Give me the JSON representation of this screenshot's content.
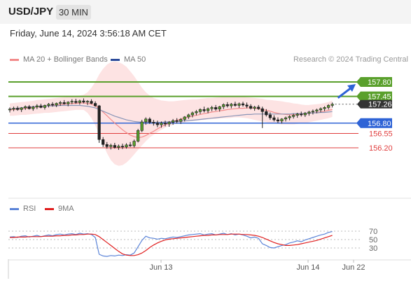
{
  "header": {
    "symbol": "USD/JPY",
    "timeframe": "30 MIN",
    "datetime": "Friday, June 14, 2024 3:56:18 AM CET"
  },
  "legend": {
    "ma20_label": "MA 20 + Bollinger Bands",
    "ma20_color": "#f28b8b",
    "ma50_label": "MA 50",
    "ma50_color": "#2b4a9a",
    "credit": "Research © 2024 Trading Central"
  },
  "rsi_legend": {
    "rsi_label": "RSI",
    "rsi_color": "#5b84d8",
    "ma_label": "9MA",
    "ma_color": "#e02020"
  },
  "chart_data": [
    {
      "type": "candlestick",
      "instrument": "USD/JPY",
      "timeframe": "30 MIN",
      "x_labels": [
        "Jun 13",
        "Jun 14",
        "Jun 22"
      ],
      "current_price": "157.26",
      "levels": [
        {
          "value": 157.8,
          "label": "157.80",
          "kind": "resistance",
          "color": "#5aa02c"
        },
        {
          "value": 157.45,
          "label": "157.45",
          "kind": "resistance",
          "color": "#5aa02c"
        },
        {
          "value": 156.8,
          "label": "156.80",
          "kind": "pivot",
          "color": "#2e63d6"
        },
        {
          "value": 156.55,
          "label": "156.55",
          "kind": "support",
          "color": "#e03c3c"
        },
        {
          "value": 156.2,
          "label": "156.20",
          "kind": "support",
          "color": "#e03c3c"
        }
      ],
      "candles": [
        [
          157.12,
          157.18,
          157.06,
          157.14
        ],
        [
          157.14,
          157.2,
          157.09,
          157.16
        ],
        [
          157.16,
          157.21,
          157.1,
          157.13
        ],
        [
          157.13,
          157.19,
          157.07,
          157.17
        ],
        [
          157.17,
          157.23,
          157.12,
          157.2
        ],
        [
          157.2,
          157.24,
          157.13,
          157.15
        ],
        [
          157.15,
          157.22,
          157.1,
          157.19
        ],
        [
          157.19,
          157.26,
          157.14,
          157.22
        ],
        [
          157.22,
          157.27,
          157.16,
          157.18
        ],
        [
          157.18,
          157.25,
          157.13,
          157.23
        ],
        [
          157.23,
          157.29,
          157.18,
          157.26
        ],
        [
          157.26,
          157.31,
          157.2,
          157.24
        ],
        [
          157.24,
          157.3,
          157.19,
          157.28
        ],
        [
          157.28,
          157.34,
          157.22,
          157.3
        ],
        [
          157.3,
          157.36,
          157.25,
          157.27
        ],
        [
          157.27,
          157.33,
          157.21,
          157.31
        ],
        [
          157.31,
          157.38,
          157.26,
          157.33
        ],
        [
          157.33,
          157.39,
          157.27,
          157.3
        ],
        [
          157.3,
          157.37,
          157.25,
          157.34
        ],
        [
          157.34,
          157.4,
          157.28,
          157.31
        ],
        [
          157.31,
          157.36,
          157.24,
          157.33
        ],
        [
          157.33,
          157.38,
          157.26,
          157.28
        ],
        [
          157.28,
          157.33,
          157.2,
          157.22
        ],
        [
          157.22,
          157.24,
          156.32,
          156.4
        ],
        [
          156.4,
          156.46,
          156.22,
          156.28
        ],
        [
          156.28,
          156.34,
          156.18,
          156.23
        ],
        [
          156.23,
          156.3,
          156.16,
          156.26
        ],
        [
          156.26,
          156.32,
          156.18,
          156.21
        ],
        [
          156.21,
          156.28,
          156.15,
          156.24
        ],
        [
          156.24,
          156.3,
          156.17,
          156.22
        ],
        [
          156.22,
          156.31,
          156.18,
          156.27
        ],
        [
          156.27,
          156.34,
          156.22,
          156.25
        ],
        [
          156.25,
          156.4,
          156.21,
          156.36
        ],
        [
          156.36,
          156.66,
          156.33,
          156.62
        ],
        [
          156.62,
          156.88,
          156.58,
          156.83
        ],
        [
          156.83,
          156.94,
          156.76,
          156.9
        ],
        [
          156.9,
          156.94,
          156.78,
          156.82
        ],
        [
          156.82,
          156.88,
          156.74,
          156.8
        ],
        [
          156.8,
          156.86,
          156.7,
          156.76
        ],
        [
          156.76,
          156.84,
          156.69,
          156.8
        ],
        [
          156.8,
          156.86,
          156.72,
          156.78
        ],
        [
          156.78,
          156.85,
          156.71,
          156.82
        ],
        [
          156.82,
          156.9,
          156.76,
          156.86
        ],
        [
          156.86,
          156.92,
          156.79,
          156.84
        ],
        [
          156.84,
          156.92,
          156.78,
          156.89
        ],
        [
          156.89,
          156.97,
          156.84,
          156.95
        ],
        [
          156.95,
          157.03,
          156.9,
          157.0
        ],
        [
          157.0,
          157.08,
          156.94,
          157.05
        ],
        [
          157.05,
          157.12,
          156.99,
          157.08
        ],
        [
          157.08,
          157.16,
          157.02,
          157.13
        ],
        [
          157.13,
          157.2,
          157.06,
          157.1
        ],
        [
          157.1,
          157.18,
          157.04,
          157.15
        ],
        [
          157.15,
          157.22,
          157.09,
          157.18
        ],
        [
          157.18,
          157.24,
          157.1,
          157.14
        ],
        [
          157.14,
          157.22,
          157.08,
          157.2
        ],
        [
          157.2,
          157.28,
          157.14,
          157.25
        ],
        [
          157.25,
          157.31,
          157.18,
          157.22
        ],
        [
          157.22,
          157.29,
          157.16,
          157.26
        ],
        [
          157.26,
          157.32,
          157.2,
          157.23
        ],
        [
          157.23,
          157.3,
          157.17,
          157.27
        ],
        [
          157.27,
          157.32,
          157.2,
          157.24
        ],
        [
          157.24,
          157.3,
          157.16,
          157.21
        ],
        [
          157.21,
          157.26,
          157.13,
          157.16
        ],
        [
          157.16,
          157.22,
          157.1,
          157.19
        ],
        [
          157.19,
          157.24,
          157.12,
          157.15
        ],
        [
          157.15,
          157.2,
          156.68,
          157.08
        ],
        [
          157.08,
          157.14,
          156.96,
          157.0
        ],
        [
          157.0,
          157.06,
          156.88,
          156.93
        ],
        [
          156.93,
          156.99,
          156.84,
          156.88
        ],
        [
          156.88,
          156.94,
          156.8,
          156.85
        ],
        [
          156.85,
          156.92,
          156.79,
          156.9
        ],
        [
          156.9,
          156.96,
          156.84,
          156.93
        ],
        [
          156.93,
          156.99,
          156.87,
          156.96
        ],
        [
          156.96,
          157.03,
          156.91,
          156.99
        ],
        [
          156.99,
          157.05,
          156.93,
          157.02
        ],
        [
          157.02,
          157.08,
          156.96,
          157.0
        ],
        [
          157.0,
          157.07,
          156.95,
          157.04
        ],
        [
          157.04,
          157.1,
          156.98,
          157.07
        ],
        [
          157.07,
          157.13,
          157.01,
          157.09
        ],
        [
          157.09,
          157.15,
          157.04,
          157.12
        ],
        [
          157.12,
          157.18,
          157.06,
          157.15
        ],
        [
          157.15,
          157.21,
          157.09,
          157.18
        ],
        [
          157.18,
          157.26,
          157.13,
          157.23
        ],
        [
          157.23,
          157.3,
          157.18,
          157.26
        ]
      ],
      "ma20": [
        157.12,
        157.13,
        157.14,
        157.15,
        157.16,
        157.17,
        157.18,
        157.19,
        157.2,
        157.21,
        157.22,
        157.23,
        157.24,
        157.25,
        157.26,
        157.27,
        157.28,
        157.28,
        157.29,
        157.29,
        157.28,
        157.26,
        157.22,
        157.15,
        157.07,
        156.98,
        156.89,
        156.8,
        156.72,
        156.64,
        156.57,
        156.51,
        156.47,
        156.45,
        156.46,
        156.5,
        156.55,
        156.6,
        156.66,
        156.71,
        156.76,
        156.8,
        156.84,
        156.87,
        156.9,
        156.93,
        156.95,
        156.97,
        156.99,
        157.01,
        157.03,
        157.05,
        157.07,
        157.08,
        157.1,
        157.11,
        157.13,
        157.14,
        157.15,
        157.16,
        157.16,
        157.17,
        157.17,
        157.16,
        157.15,
        157.13,
        157.11,
        157.09,
        157.06,
        157.04,
        157.02,
        157.01,
        157.0,
        157.0,
        157.01,
        157.02,
        157.03,
        157.04,
        157.05,
        157.06,
        157.07,
        157.09,
        157.11,
        157.13
      ],
      "ma50": [
        157.14,
        157.15,
        157.16,
        157.17,
        157.18,
        157.19,
        157.2,
        157.2,
        157.21,
        157.21,
        157.22,
        157.22,
        157.22,
        157.23,
        157.23,
        157.23,
        157.23,
        157.23,
        157.23,
        157.22,
        157.21,
        157.19,
        157.17,
        157.13,
        157.09,
        157.05,
        157.01,
        156.97,
        156.94,
        156.91,
        156.88,
        156.86,
        156.84,
        156.83,
        156.82,
        156.82,
        156.82,
        156.82,
        156.82,
        156.82,
        156.83,
        156.83,
        156.84,
        156.84,
        156.85,
        156.86,
        156.86,
        156.87,
        156.88,
        156.89,
        156.9,
        156.91,
        156.92,
        156.93,
        156.94,
        156.95,
        156.96,
        156.97,
        156.98,
        156.99,
        157.0,
        157.01,
        157.01,
        157.02,
        157.02,
        157.02,
        157.02,
        157.02,
        157.02,
        157.02,
        157.02,
        157.02,
        157.02,
        157.03,
        157.03,
        157.03,
        157.04,
        157.04,
        157.05,
        157.05,
        157.06,
        157.06,
        157.07,
        157.08
      ],
      "bb_upper": [
        157.28,
        157.29,
        157.3,
        157.31,
        157.32,
        157.33,
        157.34,
        157.36,
        157.37,
        157.38,
        157.39,
        157.4,
        157.41,
        157.42,
        157.43,
        157.44,
        157.45,
        157.46,
        157.47,
        157.49,
        157.55,
        157.66,
        157.8,
        157.98,
        158.12,
        158.22,
        158.28,
        158.3,
        158.28,
        158.24,
        158.17,
        158.06,
        157.94,
        157.8,
        157.66,
        157.55,
        157.47,
        157.41,
        157.38,
        157.35,
        157.34,
        157.33,
        157.33,
        157.34,
        157.35,
        157.36,
        157.37,
        157.38,
        157.38,
        157.39,
        157.4,
        157.41,
        157.41,
        157.42,
        157.43,
        157.44,
        157.44,
        157.45,
        157.45,
        157.45,
        157.44,
        157.43,
        157.42,
        157.41,
        157.4,
        157.39,
        157.37,
        157.36,
        157.35,
        157.34,
        157.33,
        157.31,
        157.3,
        157.28,
        157.27,
        157.25,
        157.24,
        157.24,
        157.25,
        157.26,
        157.27,
        157.29,
        157.31,
        157.35
      ],
      "bb_lower": [
        156.98,
        156.98,
        156.99,
        157.0,
        157.0,
        157.01,
        157.02,
        157.03,
        157.04,
        157.05,
        157.05,
        157.06,
        157.07,
        157.08,
        157.09,
        157.1,
        157.11,
        157.12,
        157.12,
        157.12,
        157.05,
        156.92,
        156.75,
        156.52,
        156.28,
        156.07,
        155.9,
        155.8,
        155.76,
        155.78,
        155.84,
        155.93,
        156.04,
        156.15,
        156.26,
        156.36,
        156.45,
        156.52,
        156.58,
        156.64,
        156.69,
        156.73,
        156.76,
        156.79,
        156.81,
        156.82,
        156.84,
        156.85,
        156.86,
        156.87,
        156.88,
        156.89,
        156.9,
        156.9,
        156.91,
        156.92,
        156.92,
        156.93,
        156.94,
        156.94,
        156.93,
        156.92,
        156.9,
        156.88,
        156.86,
        156.84,
        156.82,
        156.8,
        156.79,
        156.78,
        156.77,
        156.77,
        156.77,
        156.77,
        156.78,
        156.79,
        156.8,
        156.82,
        156.84,
        156.86,
        156.88,
        156.9,
        156.92,
        156.95
      ]
    },
    {
      "type": "line",
      "indicator": "RSI",
      "ylim": [
        0,
        100
      ],
      "y_ticks": [
        "70",
        "50",
        "30"
      ],
      "series": [
        {
          "name": "RSI",
          "color": "#5b84d8",
          "values": [
            56,
            57,
            55,
            58,
            59,
            56,
            58,
            60,
            57,
            59,
            61,
            59,
            62,
            63,
            61,
            63,
            64,
            62,
            65,
            63,
            64,
            62,
            55,
            15,
            11,
            10,
            12,
            11,
            13,
            12,
            14,
            13,
            18,
            33,
            48,
            58,
            54,
            53,
            51,
            53,
            52,
            54,
            56,
            55,
            57,
            59,
            61,
            62,
            63,
            64,
            61,
            63,
            64,
            61,
            63,
            65,
            62,
            64,
            61,
            63,
            61,
            58,
            54,
            56,
            53,
            40,
            36,
            31,
            30,
            33,
            36,
            38,
            42,
            44,
            47,
            45,
            49,
            52,
            55,
            58,
            61,
            63,
            67,
            69
          ]
        },
        {
          "name": "9MA",
          "color": "#e02020",
          "values": [
            55,
            55,
            56,
            56,
            56,
            57,
            57,
            57,
            57,
            58,
            58,
            58,
            59,
            59,
            60,
            60,
            61,
            61,
            62,
            62,
            63,
            63,
            62,
            57,
            50,
            43,
            36,
            29,
            22,
            16,
            13,
            12,
            12,
            14,
            18,
            24,
            31,
            37,
            42,
            46,
            49,
            51,
            52,
            53,
            54,
            55,
            56,
            57,
            58,
            59,
            60,
            60,
            61,
            61,
            62,
            62,
            62,
            63,
            63,
            63,
            62,
            62,
            61,
            60,
            58,
            55,
            51,
            47,
            43,
            40,
            38,
            36,
            36,
            37,
            38,
            40,
            42,
            44,
            46,
            48,
            51,
            54,
            57,
            60
          ]
        }
      ]
    }
  ]
}
